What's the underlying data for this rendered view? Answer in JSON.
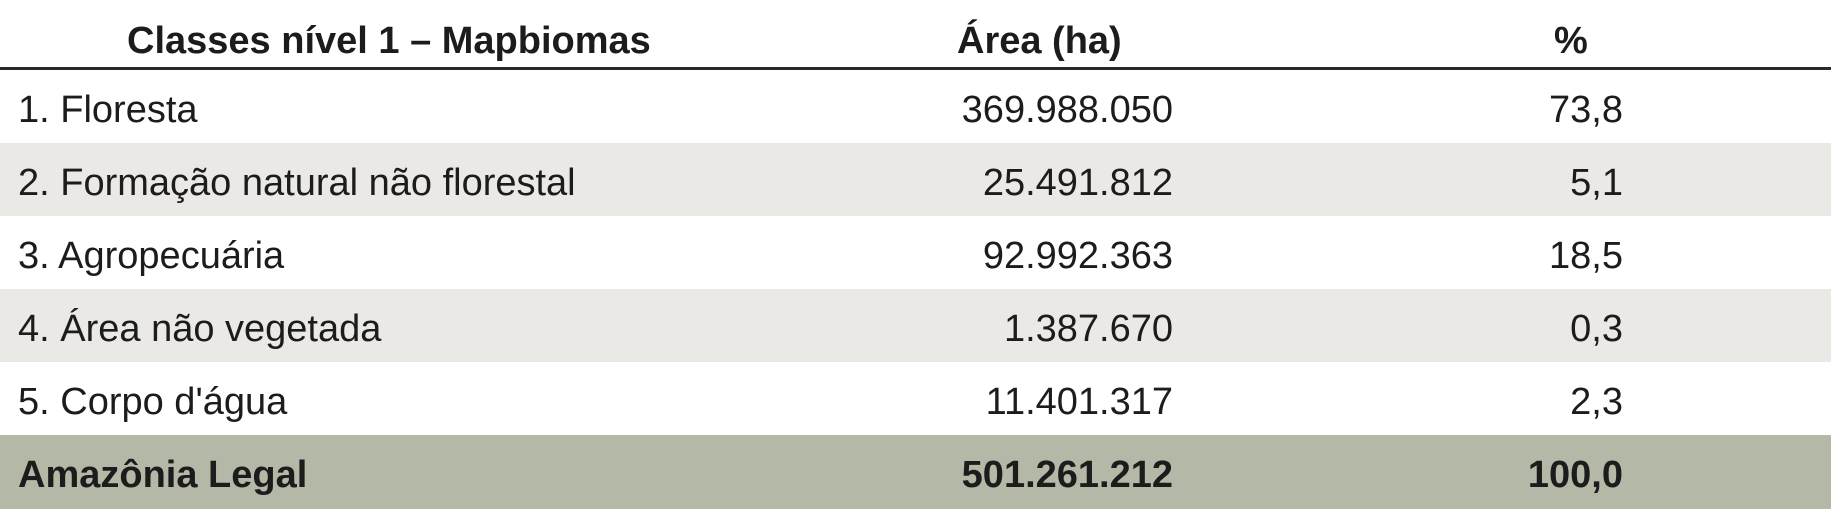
{
  "table": {
    "headers": {
      "class": "Classes nível 1 – Mapbiomas",
      "area": "Área (ha)",
      "percent": "%"
    },
    "rows": [
      {
        "class": "1. Floresta",
        "area": "369.988.050",
        "percent": "73,8"
      },
      {
        "class": "2. Formação natural não florestal",
        "area": "25.491.812",
        "percent": "5,1"
      },
      {
        "class": "3. Agropecuária",
        "area": "92.992.363",
        "percent": "18,5"
      },
      {
        "class": "4. Área não vegetada",
        "area": "1.387.670",
        "percent": "0,3"
      },
      {
        "class": "5. Corpo d'água",
        "area": "11.401.317",
        "percent": "2,3"
      }
    ],
    "total": {
      "class": "Amazônia Legal",
      "area": "501.261.212",
      "percent": "100,0"
    }
  },
  "colors": {
    "row_shade": "#ebe9e5",
    "total_row": "#b4b8a6",
    "header_rule": "#2a2a2a"
  }
}
